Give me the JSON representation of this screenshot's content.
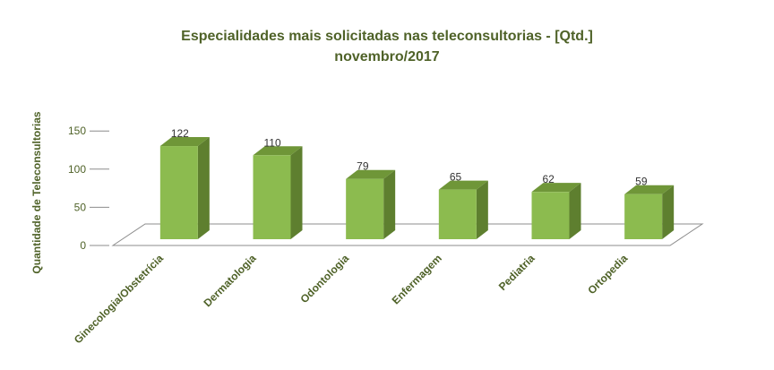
{
  "chart_data": {
    "type": "bar",
    "title": "Especialidades mais solicitadas nas teleconsultorias - [Qtd.]",
    "subtitle": "novembro/2017",
    "ylabel": "Quantidade de Teleconsultorias",
    "xlabel": "",
    "categories": [
      "Ginecologia/Obstetrícia",
      "Dermatologia",
      "Odontologia",
      "Enfermagem",
      "Pediatria",
      "Ortopedia"
    ],
    "values": [
      122,
      110,
      79,
      65,
      62,
      59
    ],
    "ylim": [
      0,
      150
    ],
    "yticks": [
      "0",
      "50",
      "100",
      "150"
    ],
    "grid": false,
    "legend": "none",
    "three_d": true,
    "colors": {
      "bar_front": "#8cbb4f",
      "bar_side": "#5e7f2f",
      "bar_top": "#6f9638",
      "title": "#4f6228",
      "axis_text": "#4f6228",
      "value_text": "#333333",
      "floor_line": "#8c8c8c"
    }
  }
}
